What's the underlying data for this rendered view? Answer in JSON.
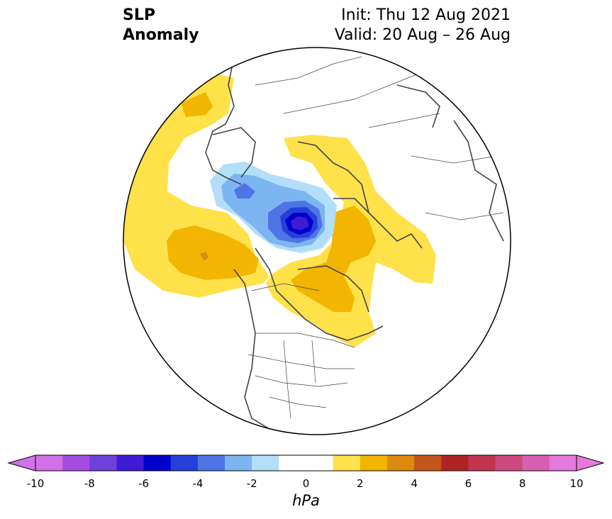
{
  "title": {
    "line1": "SLP",
    "line2": "Anomaly"
  },
  "info": {
    "init": "Init: Thu 12 Aug 2021",
    "valid": "Valid: 20 Aug – 26 Aug"
  },
  "colorbar": {
    "unit": "hPa",
    "ticks": [
      "-10",
      "-8",
      "-6",
      "-4",
      "-2",
      "0",
      "2",
      "4",
      "6",
      "8",
      "10"
    ],
    "colors": [
      "#d270e8",
      "#a34ee0",
      "#7040dc",
      "#3f1bd6",
      "#0000cd",
      "#2540da",
      "#5073e6",
      "#7db5f2",
      "#b3def9",
      "#ffffff",
      "#ffffff",
      "#ffe14a",
      "#f2b500",
      "#dc8a10",
      "#c2561a",
      "#b02323",
      "#c23550",
      "#cc4a80",
      "#d860b0",
      "#e478dc"
    ],
    "extend_min_color": "#d270e8",
    "extend_max_color": "#e478dc"
  },
  "map": {
    "projection": "north-polar-stereographic",
    "colors": {
      "land_line": "#444444",
      "pos1": "#ffe14a",
      "pos2": "#f2b500",
      "pos3": "#dc8a10",
      "neg1": "#b3def9",
      "neg2": "#7db5f2",
      "neg3": "#5073e6",
      "neg4": "#2540da",
      "neg5": "#0000cd",
      "neg6": "#3f1bd6"
    }
  }
}
